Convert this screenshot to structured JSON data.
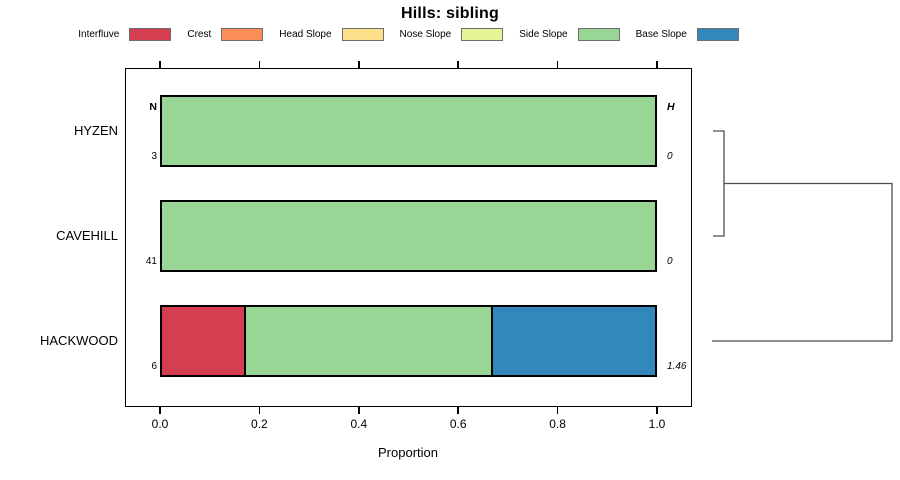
{
  "title": "Hills: sibling",
  "legend": {
    "items": [
      {
        "label": "Interfluve",
        "color": "#D53E4F"
      },
      {
        "label": "Crest",
        "color": "#FC8D59"
      },
      {
        "label": "Head Slope",
        "color": "#FEE08B"
      },
      {
        "label": "Nose Slope",
        "color": "#E6F598"
      },
      {
        "label": "Side Slope",
        "color": "#99D594"
      },
      {
        "label": "Base Slope",
        "color": "#3288BD"
      }
    ]
  },
  "annotation_columns": {
    "n_header": "N",
    "h_header": "H"
  },
  "chart_data": {
    "type": "bar",
    "orientation": "horizontal",
    "stacked": true,
    "title": "Hills: sibling",
    "xlabel": "Proportion",
    "xlim": [
      0.0,
      1.0
    ],
    "x_ticks": [
      "0.0",
      "0.2",
      "0.4",
      "0.6",
      "0.8",
      "1.0"
    ],
    "grid": false,
    "legend_position": "top",
    "categories": [
      "HYZEN",
      "CAVEHILL",
      "HACKWOOD"
    ],
    "n_values": [
      "3",
      "41",
      "6"
    ],
    "h_values": [
      "0",
      "0",
      "1.46"
    ],
    "series": [
      {
        "name": "Interfluve",
        "color": "#D53E4F",
        "values": [
          0,
          0,
          0.167
        ]
      },
      {
        "name": "Crest",
        "color": "#FC8D59",
        "values": [
          0,
          0,
          0
        ]
      },
      {
        "name": "Head Slope",
        "color": "#FEE08B",
        "values": [
          0,
          0,
          0
        ]
      },
      {
        "name": "Nose Slope",
        "color": "#E6F598",
        "values": [
          0,
          0,
          0
        ]
      },
      {
        "name": "Side Slope",
        "color": "#99D594",
        "values": [
          1.0,
          1.0,
          0.5
        ]
      },
      {
        "name": "Base Slope",
        "color": "#3288BD",
        "values": [
          0,
          0,
          0.333
        ]
      }
    ],
    "dendrogram": {
      "note": "hierarchical clustering shown in right margin, merge height increases rightward",
      "merges": [
        {
          "members": [
            "HYZEN",
            "CAVEHILL"
          ],
          "relative_height": "small"
        },
        {
          "members": [
            "HYZEN+CAVEHILL",
            "HACKWOOD"
          ],
          "relative_height": "large"
        }
      ]
    }
  }
}
